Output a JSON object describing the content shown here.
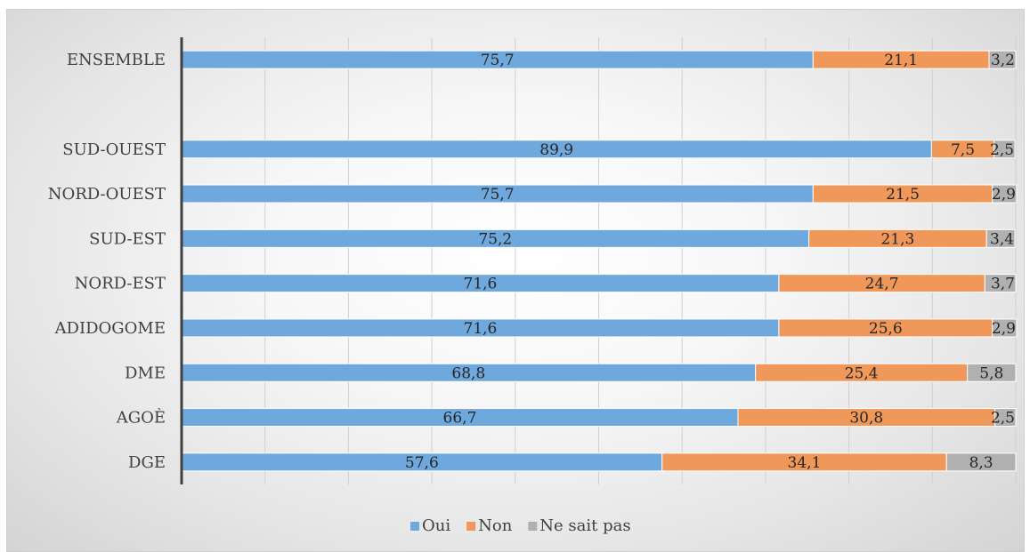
{
  "chart_data": {
    "type": "bar",
    "orientation": "horizontal",
    "stacked": true,
    "percent_stacked": true,
    "categories": [
      "ENSEMBLE",
      "",
      "SUD-OUEST",
      "NORD-OUEST",
      "SUD-EST",
      "NORD-EST",
      "ADIDOGOME",
      "DME",
      "AGOÈ",
      "DGE"
    ],
    "series": [
      {
        "name": "Oui",
        "color": "#6fa8dc",
        "values": [
          75.7,
          null,
          89.9,
          75.7,
          75.2,
          71.6,
          71.6,
          68.8,
          66.7,
          57.6
        ],
        "labels": [
          "75,7",
          "",
          "89,9",
          "75,7",
          "75,2",
          "71,6",
          "71,6",
          "68,8",
          "66,7",
          "57,6"
        ]
      },
      {
        "name": "Non",
        "color": "#f0975a",
        "values": [
          21.1,
          null,
          7.5,
          21.5,
          21.3,
          24.7,
          25.6,
          25.4,
          30.8,
          34.1
        ],
        "labels": [
          "21,1",
          "",
          "7,5",
          "21,5",
          "21,3",
          "24,7",
          "25,6",
          "25,4",
          "30,8",
          "34,1"
        ]
      },
      {
        "name": "Ne sait pas",
        "color": "#b0b0b0",
        "values": [
          3.2,
          null,
          2.5,
          2.9,
          3.4,
          3.7,
          2.9,
          5.8,
          2.5,
          8.3
        ],
        "labels": [
          "3,2",
          "",
          "2,5",
          "2,9",
          "3,4",
          "3,7",
          "2,9",
          "5,8",
          "2,5",
          "8,3"
        ]
      }
    ],
    "xlim": [
      0,
      100
    ],
    "grid": true,
    "legend_position": "bottom"
  }
}
